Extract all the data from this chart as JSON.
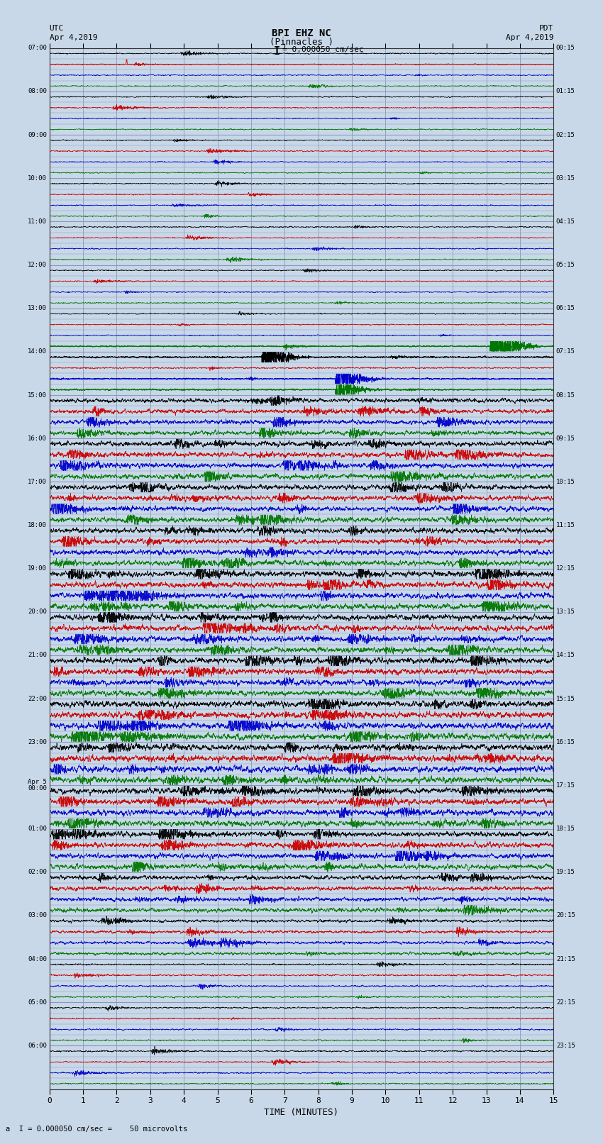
{
  "title_line1": "BPI EHZ NC",
  "title_line2": "(Pinnacles )",
  "scale_text": "I = 0.000050 cm/sec",
  "bottom_scale_text": "a  I = 0.000050 cm/sec =    50 microvolts",
  "utc_label": "UTC",
  "utc_date": "Apr 4,2019",
  "pdt_label": "PDT",
  "pdt_date": "Apr 4,2019",
  "xlabel": "TIME (MINUTES)",
  "xmin": 0,
  "xmax": 15,
  "background_color": "#c8d8e8",
  "plot_bg_color": "#c8d8e8",
  "grid_color": "#8899bb",
  "trace_colors": [
    "#000000",
    "#cc0000",
    "#0000cc",
    "#007700"
  ],
  "num_hour_blocks": 24,
  "traces_per_block": 4,
  "left_times_utc": [
    "07:00",
    "08:00",
    "09:00",
    "10:00",
    "11:00",
    "12:00",
    "13:00",
    "14:00",
    "15:00",
    "16:00",
    "17:00",
    "18:00",
    "19:00",
    "20:00",
    "21:00",
    "22:00",
    "23:00",
    "Apr 5\n00:00",
    "01:00",
    "02:00",
    "03:00",
    "04:00",
    "05:00",
    "06:00"
  ],
  "right_times_pdt": [
    "00:15",
    "01:15",
    "02:15",
    "03:15",
    "04:15",
    "05:15",
    "06:15",
    "07:15",
    "08:15",
    "09:15",
    "10:15",
    "11:15",
    "12:15",
    "13:15",
    "14:15",
    "15:15",
    "16:15",
    "17:15",
    "18:15",
    "19:15",
    "20:15",
    "21:15",
    "22:15",
    "23:15"
  ],
  "amplitude_by_block": [
    0.4,
    0.4,
    0.4,
    0.4,
    0.4,
    0.4,
    0.4,
    0.5,
    1.5,
    1.8,
    1.8,
    1.8,
    2.0,
    2.0,
    2.0,
    2.2,
    2.2,
    2.0,
    1.8,
    1.5,
    1.0,
    0.6,
    0.5,
    0.5
  ]
}
